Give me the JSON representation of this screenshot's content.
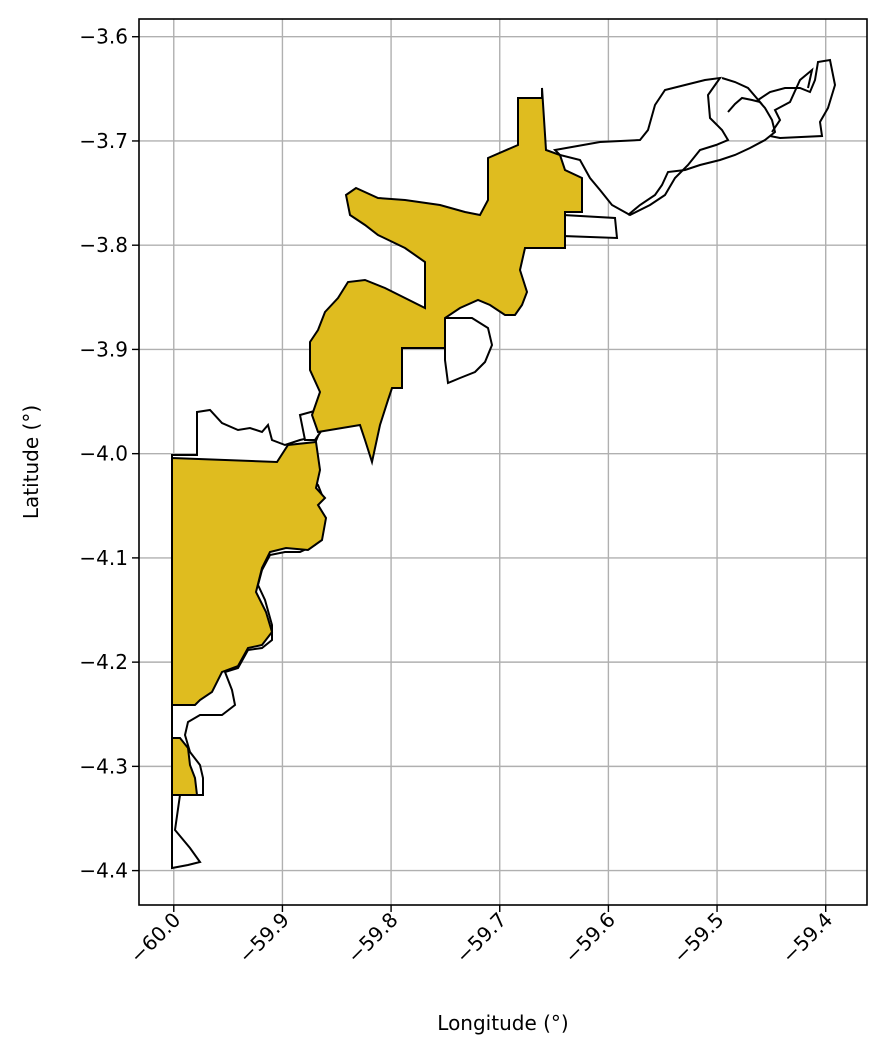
{
  "chart_data": {
    "type": "map",
    "xlabel": "Longitude (°)",
    "ylabel": "Latitude (°)",
    "xlim": [
      -60.032,
      -59.362
    ],
    "ylim": [
      -4.433,
      -3.583
    ],
    "xticks": [
      {
        "value": -60.0,
        "label": "−60.0"
      },
      {
        "value": -59.9,
        "label": "−59.9"
      },
      {
        "value": -59.8,
        "label": "−59.8"
      },
      {
        "value": -59.7,
        "label": "−59.7"
      },
      {
        "value": -59.6,
        "label": "−59.6"
      },
      {
        "value": -59.5,
        "label": "−59.5"
      },
      {
        "value": -59.4,
        "label": "−59.4"
      }
    ],
    "yticks": [
      {
        "value": -3.6,
        "label": "−3.6"
      },
      {
        "value": -3.7,
        "label": "−3.7"
      },
      {
        "value": -3.8,
        "label": "−3.8"
      },
      {
        "value": -3.9,
        "label": "−3.9"
      },
      {
        "value": -4.0,
        "label": "−4.0"
      },
      {
        "value": -4.1,
        "label": "−4.1"
      },
      {
        "value": -4.2,
        "label": "−4.2"
      },
      {
        "value": -4.3,
        "label": "−4.3"
      },
      {
        "value": -4.4,
        "label": "−4.4"
      }
    ],
    "grid": true,
    "colors": {
      "fill": "#DFBC1F",
      "outline": "#000000",
      "inner_edge": "#0000FF",
      "grid": "#B0B0B0"
    },
    "boundary": [
      [
        -60.0,
        -4.395
      ],
      [
        -60.0,
        -4.005
      ],
      [
        -59.977,
        -4.005
      ],
      [
        -59.977,
        -3.962
      ],
      [
        -59.962,
        -3.96
      ],
      [
        -59.95,
        -3.975
      ],
      [
        -59.925,
        -3.982
      ],
      [
        -59.908,
        -3.968
      ],
      [
        -59.9,
        -3.988
      ],
      [
        -59.885,
        -3.993
      ],
      [
        -59.868,
        -3.982
      ],
      [
        -59.872,
        -3.99
      ],
      [
        -59.855,
        -4.005
      ],
      [
        -59.848,
        -4.035
      ],
      [
        -59.858,
        -4.075
      ],
      [
        -59.88,
        -4.1
      ],
      [
        -59.9,
        -4.135
      ],
      [
        -59.91,
        -4.17
      ],
      [
        -59.915,
        -4.21
      ],
      [
        -59.935,
        -4.225
      ],
      [
        -59.945,
        -4.255
      ],
      [
        -59.975,
        -4.255
      ],
      [
        -59.978,
        -4.285
      ],
      [
        -59.965,
        -4.305
      ],
      [
        -59.968,
        -4.328
      ],
      [
        -59.995,
        -4.328
      ],
      [
        -59.995,
        -4.36
      ],
      [
        -59.975,
        -4.393
      ],
      [
        -60.0,
        -4.395
      ]
    ],
    "fill_regions": [
      [
        [
          -60.0,
          -4.005
        ],
        [
          -59.9,
          -4.01
        ],
        [
          -59.88,
          -3.995
        ],
        [
          -59.862,
          -3.99
        ],
        [
          -59.852,
          -4.02
        ],
        [
          -59.855,
          -4.06
        ],
        [
          -59.848,
          -4.085
        ],
        [
          -59.862,
          -4.095
        ],
        [
          -59.89,
          -4.085
        ],
        [
          -59.9,
          -4.09
        ],
        [
          -59.9,
          -4.175
        ],
        [
          -59.912,
          -4.205
        ],
        [
          -59.935,
          -4.208
        ],
        [
          -59.945,
          -4.23
        ],
        [
          -59.955,
          -4.245
        ],
        [
          -59.975,
          -4.25
        ],
        [
          -59.975,
          -4.282
        ],
        [
          -59.972,
          -4.305
        ],
        [
          -59.972,
          -4.328
        ],
        [
          -59.995,
          -4.328
        ],
        [
          -60.0,
          -4.328
        ]
      ],
      [
        [
          -59.855,
          -3.975
        ],
        [
          -59.83,
          -3.97
        ],
        [
          -59.808,
          -3.963
        ],
        [
          -59.8,
          -4.008
        ],
        [
          -59.79,
          -3.955
        ],
        [
          -59.78,
          -3.937
        ],
        [
          -59.78,
          -3.9
        ],
        [
          -59.745,
          -3.9
        ],
        [
          -59.745,
          -3.87
        ],
        [
          -59.718,
          -3.868
        ],
        [
          -59.71,
          -3.84
        ],
        [
          -59.705,
          -3.808
        ],
        [
          -59.66,
          -3.808
        ],
        [
          -59.63,
          -3.8
        ],
        [
          -59.603,
          -3.798
        ],
        [
          -59.603,
          -3.745
        ],
        [
          -59.625,
          -3.735
        ],
        [
          -59.648,
          -3.72
        ],
        [
          -59.648,
          -3.65
        ],
        [
          -59.665,
          -3.663
        ],
        [
          -59.665,
          -3.715
        ],
        [
          -59.69,
          -3.73
        ],
        [
          -59.7,
          -3.79
        ],
        [
          -59.73,
          -3.805
        ],
        [
          -59.76,
          -3.785
        ],
        [
          -59.79,
          -3.77
        ],
        [
          -59.83,
          -3.755
        ],
        [
          -59.833,
          -3.8
        ],
        [
          -59.81,
          -3.808
        ],
        [
          -59.79,
          -3.808
        ],
        [
          -59.795,
          -3.855
        ],
        [
          -59.76,
          -3.835
        ],
        [
          -59.8,
          -3.855
        ],
        [
          -59.83,
          -3.85
        ],
        [
          -59.848,
          -3.875
        ],
        [
          -59.862,
          -3.935
        ],
        [
          -59.86,
          -3.975
        ]
      ]
    ]
  }
}
